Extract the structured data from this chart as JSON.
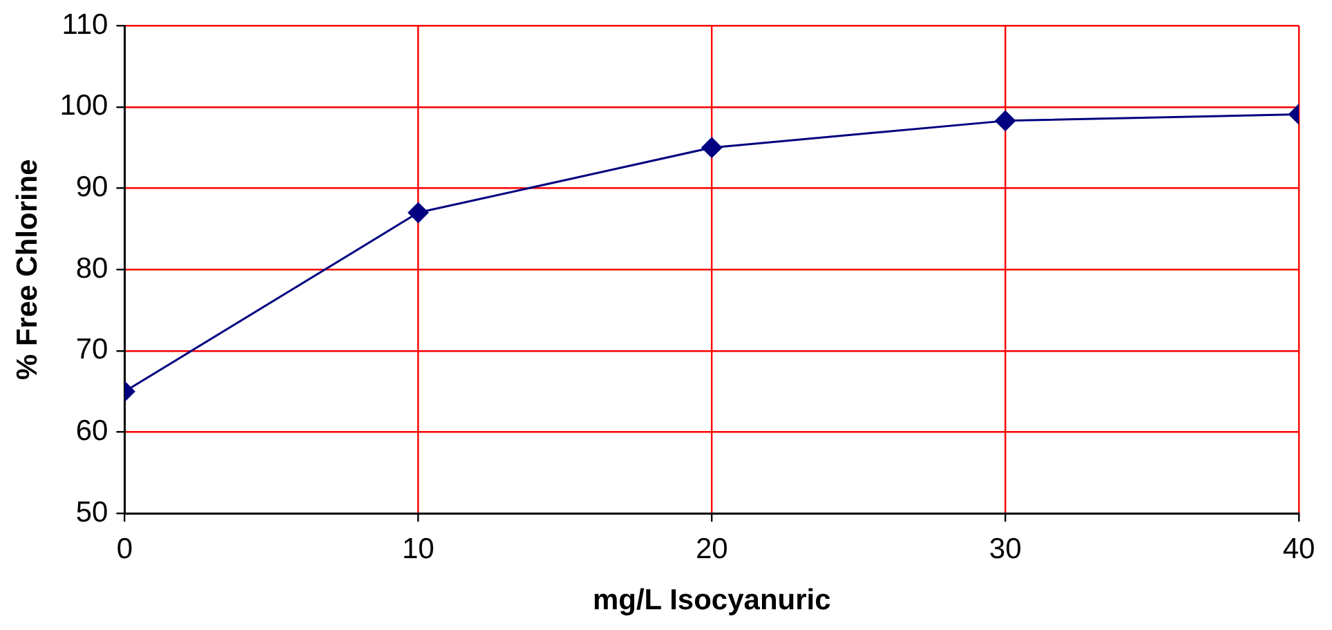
{
  "chart_data": {
    "type": "line",
    "xlabel": "mg/L Isocyanuric",
    "ylabel": "% Free Chlorine",
    "x": [
      0,
      10,
      20,
      30,
      40
    ],
    "series": [
      {
        "color": "#000080",
        "values": [
          65,
          87,
          95,
          98.3,
          99.1
        ]
      }
    ],
    "xlim": [
      0,
      40
    ],
    "xticks": [
      0,
      10,
      20,
      30,
      40
    ],
    "ylim": [
      50,
      110
    ],
    "yticks": [
      50,
      60,
      70,
      80,
      90,
      100,
      110
    ],
    "grid": true,
    "legend": false,
    "marker": "diamond",
    "line_style": "solid"
  }
}
